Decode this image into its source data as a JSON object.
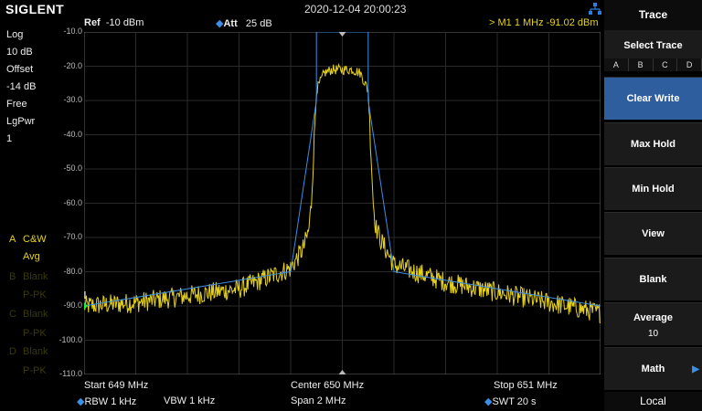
{
  "brand": "SIGLENT",
  "datetime": "2020-12-04 20:00:23",
  "header": {
    "ref_label": "Ref",
    "ref_value": "-10 dBm",
    "att_label": "Att",
    "att_value": "25 dB",
    "marker": "> M1   1 MHz  -91.02 dBm"
  },
  "left_panel": {
    "scale": "Log",
    "div": "10 dB",
    "offset_label": "Offset",
    "offset_value": "-14 dB",
    "trig": "Free",
    "pwr": "LgPwr",
    "num": "1"
  },
  "traces": [
    {
      "id": "A",
      "mode": "C&W",
      "det": "Avg",
      "color": "#e6d21c"
    },
    {
      "id": "B",
      "mode": "Blank",
      "det": "P-PK",
      "color": "#3a3a0c"
    },
    {
      "id": "C",
      "mode": "Blank",
      "det": "P-PK",
      "color": "#3a3a0c"
    },
    {
      "id": "D",
      "mode": "Blank",
      "det": "P-PK",
      "color": "#3a3a0c"
    }
  ],
  "y_axis": [
    "-10.0",
    "-20.0",
    "-30.0",
    "-40.0",
    "-50.0",
    "-60.0",
    "-70.0",
    "-80.0",
    "-90.0",
    "-100.0",
    "-110.0"
  ],
  "bottom": {
    "start": "Start  649 MHz",
    "center": "Center  650 MHz",
    "stop": "Stop  651 MHz",
    "rbw": "RBW  1 kHz",
    "vbw": "VBW  1 kHz",
    "span": "Span    2 MHz",
    "swt": "SWT  20 s"
  },
  "right_panel": {
    "title": "Trace",
    "select_trace": "Select Trace",
    "tabs": [
      "A",
      "B",
      "C",
      "D"
    ],
    "selected_tab": "A",
    "clear_write": "Clear Write",
    "max_hold": "Max Hold",
    "min_hold": "Min Hold",
    "view": "View",
    "blank": "Blank",
    "average": "Average",
    "average_value": "10",
    "math": "Math",
    "local": "Local"
  },
  "chart_data": {
    "type": "line",
    "x_unit": "MHz",
    "y_unit": "dBm",
    "xlim": [
      649,
      651
    ],
    "ylim": [
      -110,
      -10
    ],
    "grid": true,
    "series": [
      {
        "color": "#e6d21c",
        "x": [
          649.0,
          649.2,
          649.4,
          649.6,
          649.8,
          649.85,
          649.87,
          649.88,
          649.9,
          649.93,
          649.96,
          650.0,
          650.04,
          650.07,
          650.1,
          650.12,
          650.13,
          650.15,
          650.2,
          650.4,
          650.6,
          650.8,
          651.0
        ],
        "y": [
          -90,
          -89,
          -87,
          -85,
          -79,
          -73,
          -68,
          -60,
          -27,
          -22,
          -21,
          -21,
          -21,
          -22,
          -27,
          -60,
          -67,
          -71,
          -78,
          -83,
          -86,
          -89,
          -92
        ]
      },
      {
        "color": "#3b8fe8",
        "x": [
          649.0,
          649.8,
          649.9,
          649.9,
          650.1,
          650.1,
          650.2,
          651.0
        ],
        "y": [
          -90,
          -80,
          -30,
          -10,
          -10,
          -30,
          -80,
          -90
        ]
      }
    ]
  }
}
